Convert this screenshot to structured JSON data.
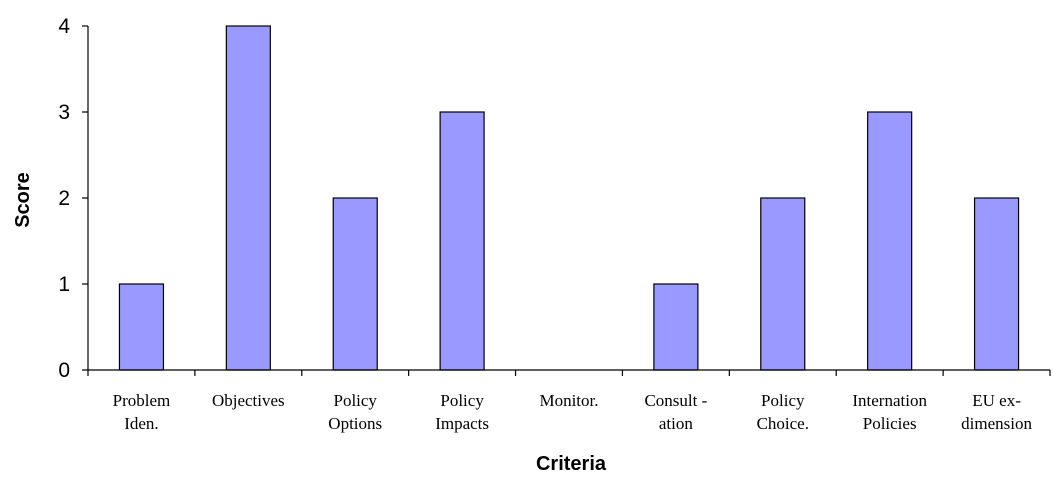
{
  "chart_data": {
    "type": "bar",
    "categories": [
      [
        "Problem",
        "Iden."
      ],
      [
        "Objectives"
      ],
      [
        "Policy",
        "Options"
      ],
      [
        "Policy",
        "Impacts"
      ],
      [
        "Monitor."
      ],
      [
        "Consult -",
        "ation"
      ],
      [
        "Policy",
        "Choice."
      ],
      [
        "Internation",
        "Policies"
      ],
      [
        "EU ex-",
        "dimension"
      ]
    ],
    "values": [
      1,
      4,
      2,
      3,
      0,
      1,
      2,
      3,
      2
    ],
    "title": "",
    "xlabel": "Criteria",
    "ylabel": "Score",
    "ylim": [
      0,
      4
    ],
    "yticks": [
      "0",
      "1",
      "2",
      "3",
      "4"
    ],
    "grid": false,
    "bar_color": "#9999ff"
  }
}
